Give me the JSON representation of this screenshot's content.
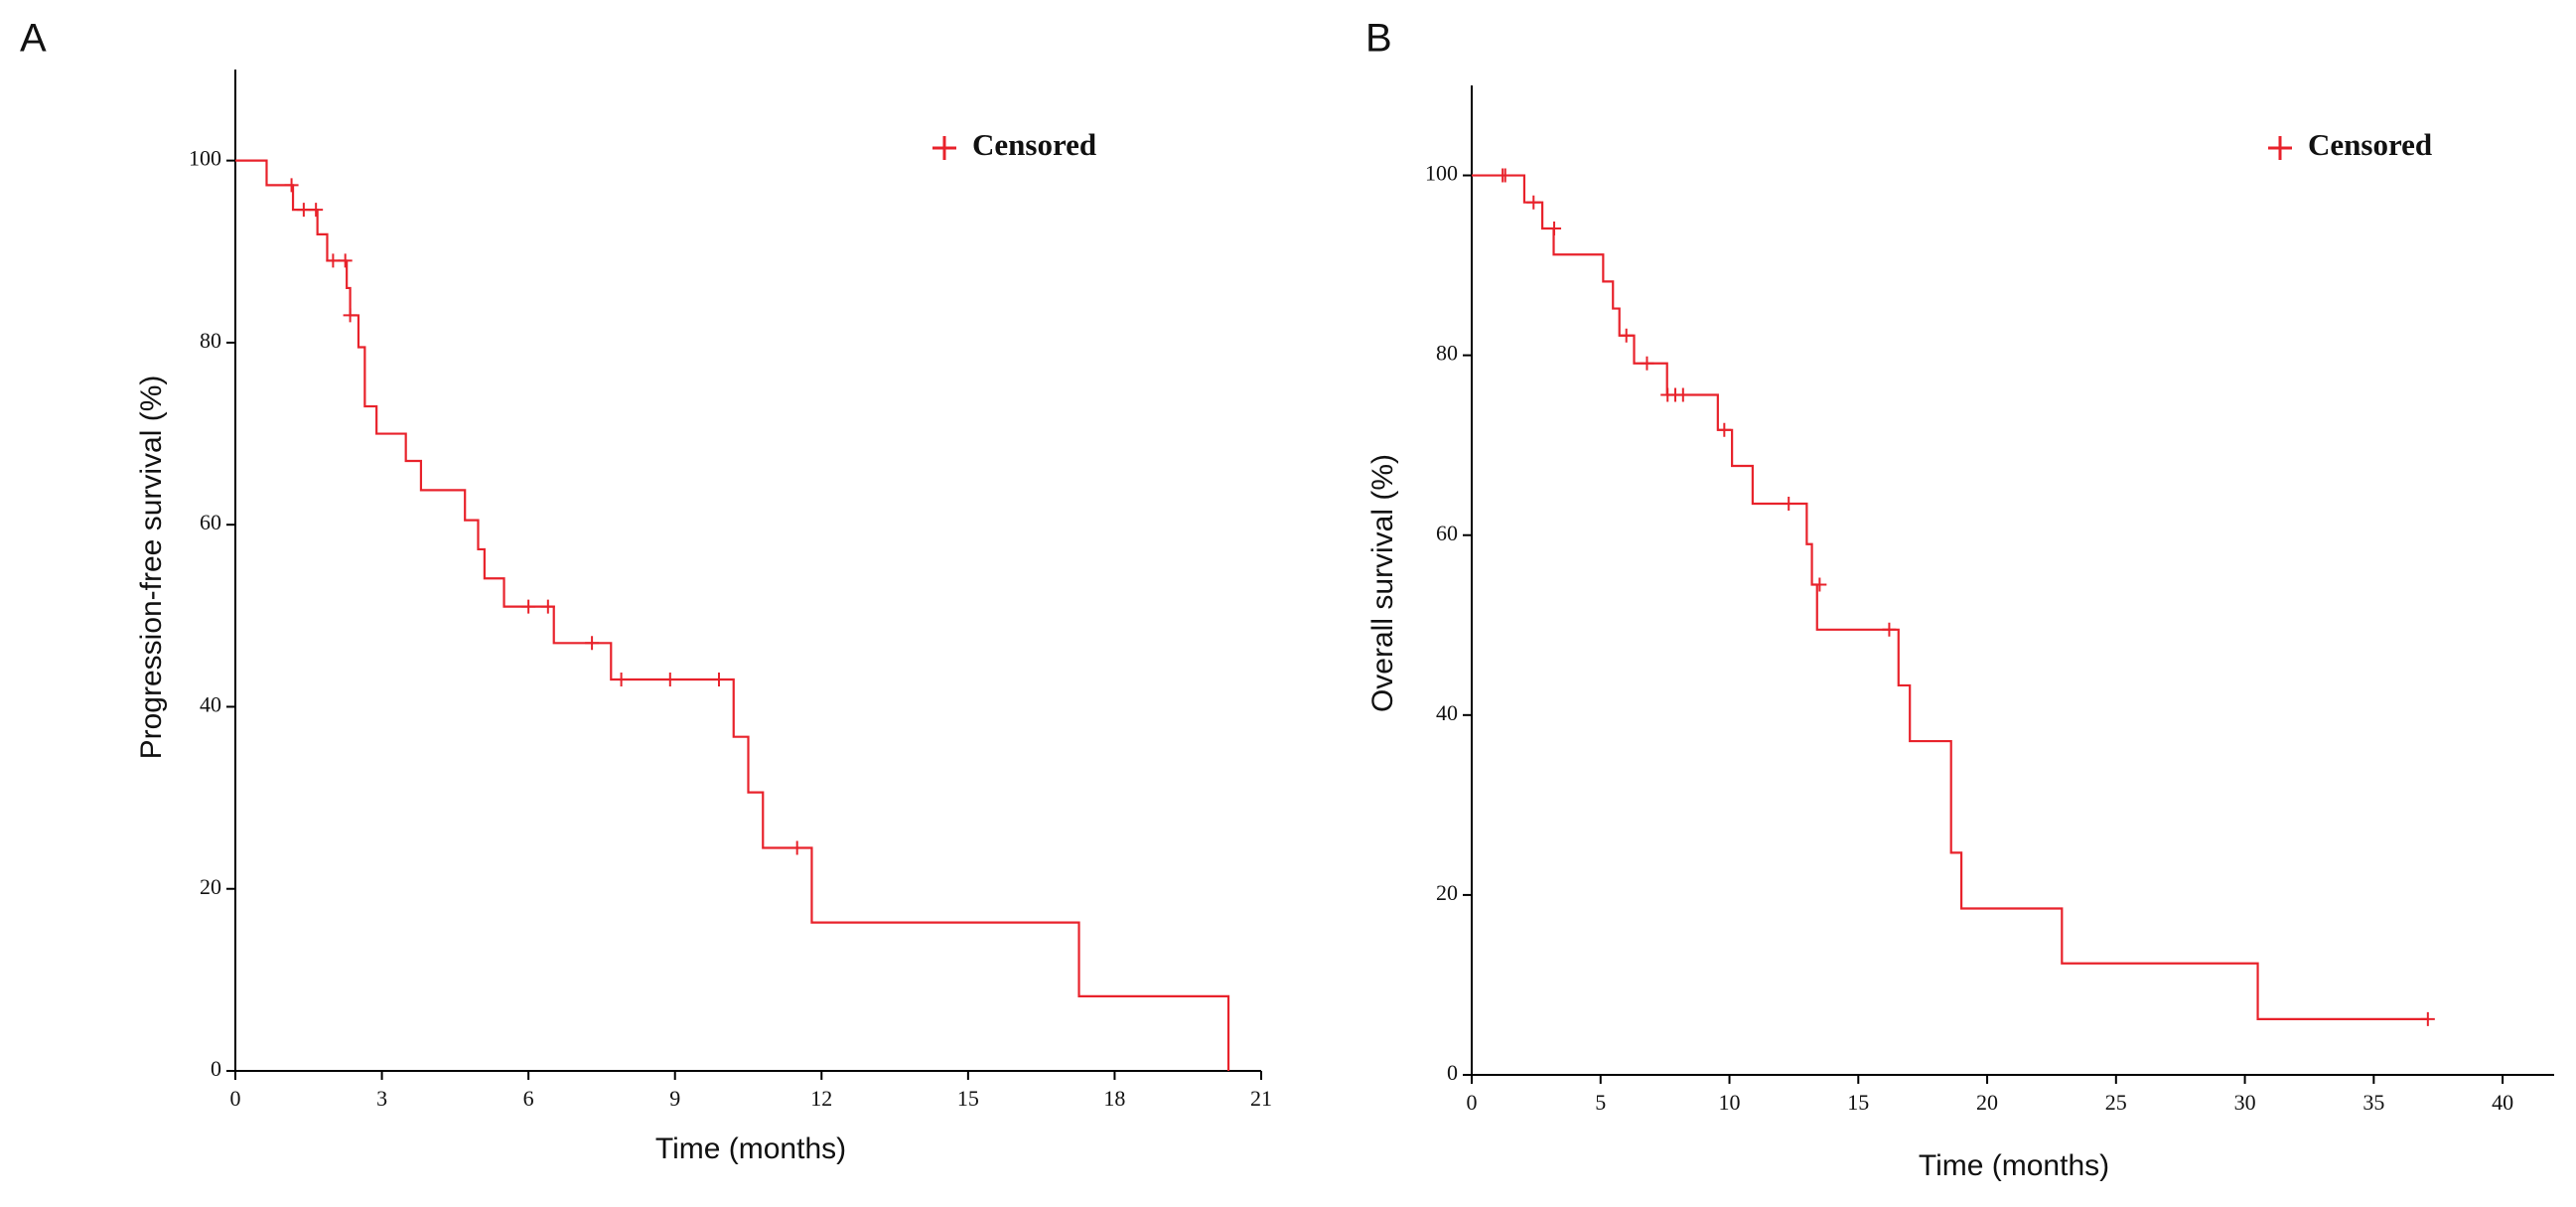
{
  "chart_data": [
    {
      "type": "step",
      "panel_label": "A",
      "x_label": "Time (months)",
      "y_label": "Progression-free survival (%)",
      "xlim": [
        0,
        21
      ],
      "xticks": [
        0,
        3,
        6,
        9,
        12,
        15,
        18,
        21
      ],
      "ylim": [
        0,
        110
      ],
      "yticks": [
        0,
        20,
        40,
        60,
        80,
        100
      ],
      "series": [
        {
          "color": "#e8222b",
          "x": [
            0,
            0.64,
            1.18,
            1.68,
            1.88,
            2.28,
            2.35,
            2.52,
            2.65,
            2.89,
            3.49,
            3.8,
            4.7,
            4.97,
            5.1,
            5.5,
            6.52,
            7.69,
            10.2,
            10.5,
            10.8,
            11.8,
            17.27,
            20.33
          ],
          "values": [
            100,
            97.3,
            94.6,
            91.9,
            89,
            86,
            83,
            79.5,
            73,
            70,
            67,
            63.8,
            60.5,
            57.3,
            54.1,
            51,
            47,
            43,
            36.7,
            30.6,
            24.5,
            16.3,
            8.2,
            0
          ]
        },
        {
          "name": "Censored",
          "color": "#e8222b",
          "x": [
            1.15,
            1.4,
            1.65,
            2.0,
            2.25,
            2.35,
            6.0,
            6.4,
            7.3,
            7.9,
            8.9,
            9.9,
            11.5
          ],
          "values": [
            97.3,
            94.6,
            94.6,
            89,
            89,
            83,
            51,
            51,
            47,
            43,
            43,
            43,
            24.5
          ]
        }
      ]
    },
    {
      "type": "step",
      "panel_label": "B",
      "x_label": "Time (months)",
      "y_label": "Overall survival (%)",
      "xlim": [
        0,
        42
      ],
      "xticks": [
        0,
        5,
        10,
        15,
        20,
        25,
        30,
        35,
        40
      ],
      "ylim": [
        0,
        110
      ],
      "yticks": [
        0,
        20,
        40,
        60,
        80,
        100
      ],
      "series": [
        {
          "color": "#e8222b",
          "x": [
            0,
            2.04,
            2.74,
            3.18,
            5.1,
            5.48,
            5.73,
            6.3,
            7.58,
            9.55,
            10.1,
            10.9,
            13.0,
            13.2,
            13.4,
            16.56,
            17.0,
            18.6,
            19.0,
            22.9,
            30.5,
            37.1
          ],
          "values": [
            100,
            97,
            94.1,
            91.2,
            88.2,
            85.2,
            82.2,
            79.1,
            75.6,
            71.7,
            67.7,
            63.5,
            59,
            54.5,
            49.5,
            43.3,
            37.1,
            24.7,
            18.5,
            12.4,
            6.2,
            6.2
          ]
        },
        {
          "name": "Censored",
          "color": "#e8222b",
          "x": [
            1.2,
            1.3,
            2.4,
            3.2,
            6.0,
            6.8,
            7.6,
            7.9,
            8.2,
            9.8,
            12.3,
            13.5,
            16.2,
            37.1
          ],
          "values": [
            100,
            100,
            97,
            94.1,
            82.2,
            79.1,
            75.6,
            75.6,
            75.6,
            71.7,
            63.5,
            54.5,
            49.5,
            6.2
          ]
        }
      ]
    }
  ]
}
